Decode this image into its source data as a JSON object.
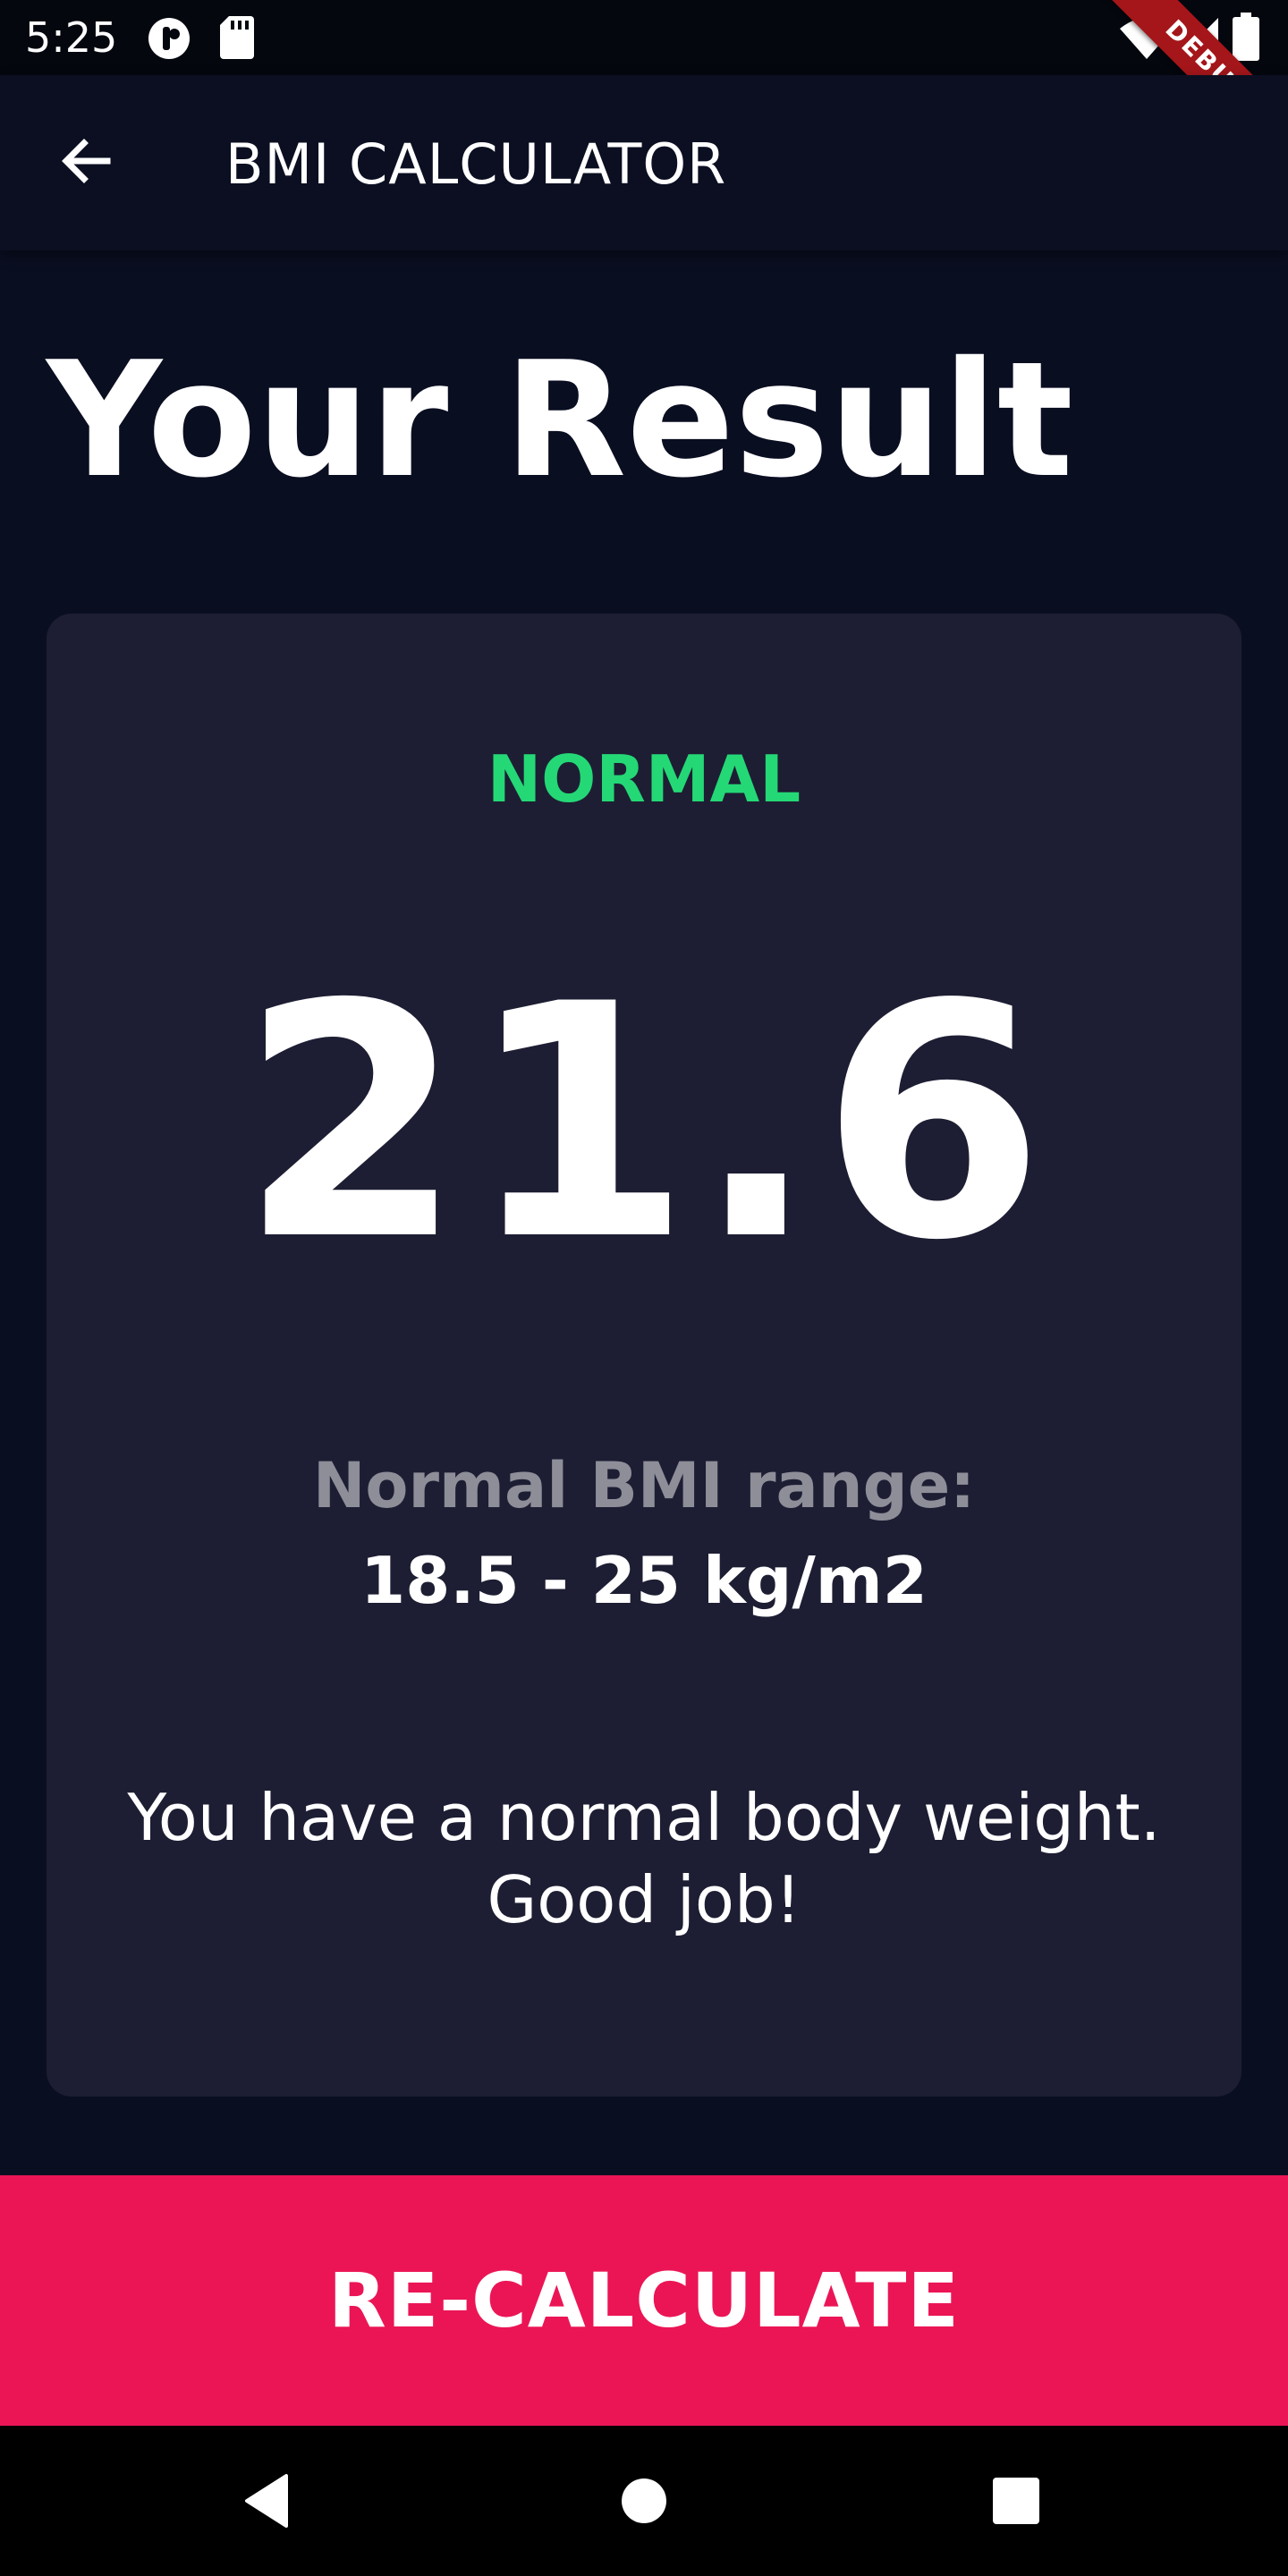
{
  "status_bar": {
    "time": "5:25",
    "icons": [
      "notification-icon",
      "sd-card-icon",
      "wifi-icon",
      "signal-icon",
      "battery-icon"
    ]
  },
  "debug_banner": {
    "label": "DEBUG"
  },
  "app_bar": {
    "title": "BMI CALCULATOR",
    "back_icon": "arrow-back-icon"
  },
  "page": {
    "heading": "Your Result"
  },
  "result": {
    "status": "NORMAL",
    "bmi": "21.6",
    "range_label": "Normal BMI range:",
    "range_value": "18.5 - 25 kg/m2",
    "interpretation": "You have a normal body weight. Good job!"
  },
  "action": {
    "recalculate_label": "RE-CALCULATE"
  },
  "nav_bar": {
    "icons": [
      "back-triangle-icon",
      "home-circle-icon",
      "recents-square-icon"
    ]
  },
  "colors": {
    "background": "#0a0e21",
    "card": "#1d1e33",
    "status_green": "#24d876",
    "muted_text": "#8d8e98",
    "accent": "#eb1555"
  }
}
